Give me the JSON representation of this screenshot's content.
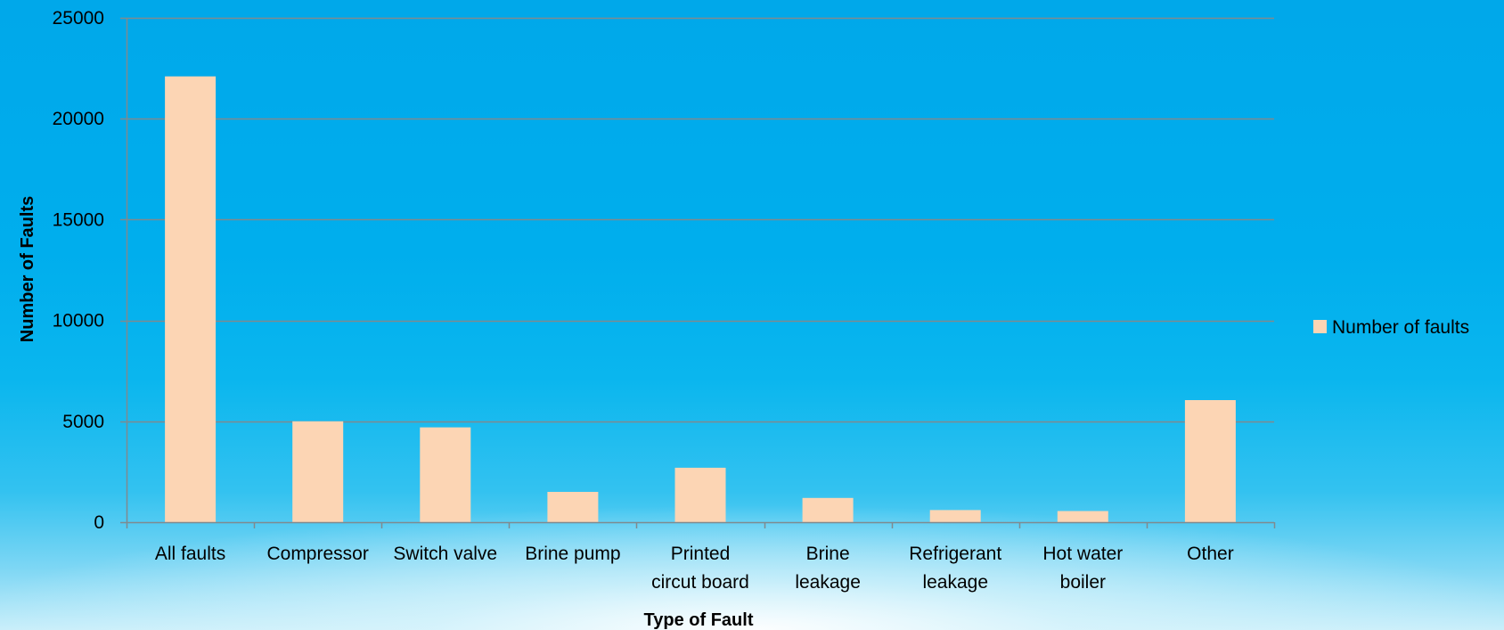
{
  "chart_data": {
    "type": "bar",
    "categories": [
      [
        "All faults"
      ],
      [
        "Compressor"
      ],
      [
        "Switch valve"
      ],
      [
        "Brine pump"
      ],
      [
        "Printed",
        "circut board"
      ],
      [
        "Brine",
        "leakage"
      ],
      [
        "Refrigerant",
        "leakage"
      ],
      [
        "Hot water",
        "boiler"
      ],
      [
        "Other"
      ]
    ],
    "series": [
      {
        "name": "Number of faults",
        "values": [
          22100,
          5000,
          4700,
          1500,
          2700,
          1200,
          600,
          550,
          6050
        ],
        "color": "#fcd5b4"
      }
    ],
    "xlabel": "Type of Fault",
    "ylabel": "Number of Faults",
    "ylim": [
      0,
      25000
    ],
    "yticks": [
      0,
      5000,
      10000,
      15000,
      20000,
      25000
    ],
    "grid": true,
    "legend_position": "right"
  }
}
